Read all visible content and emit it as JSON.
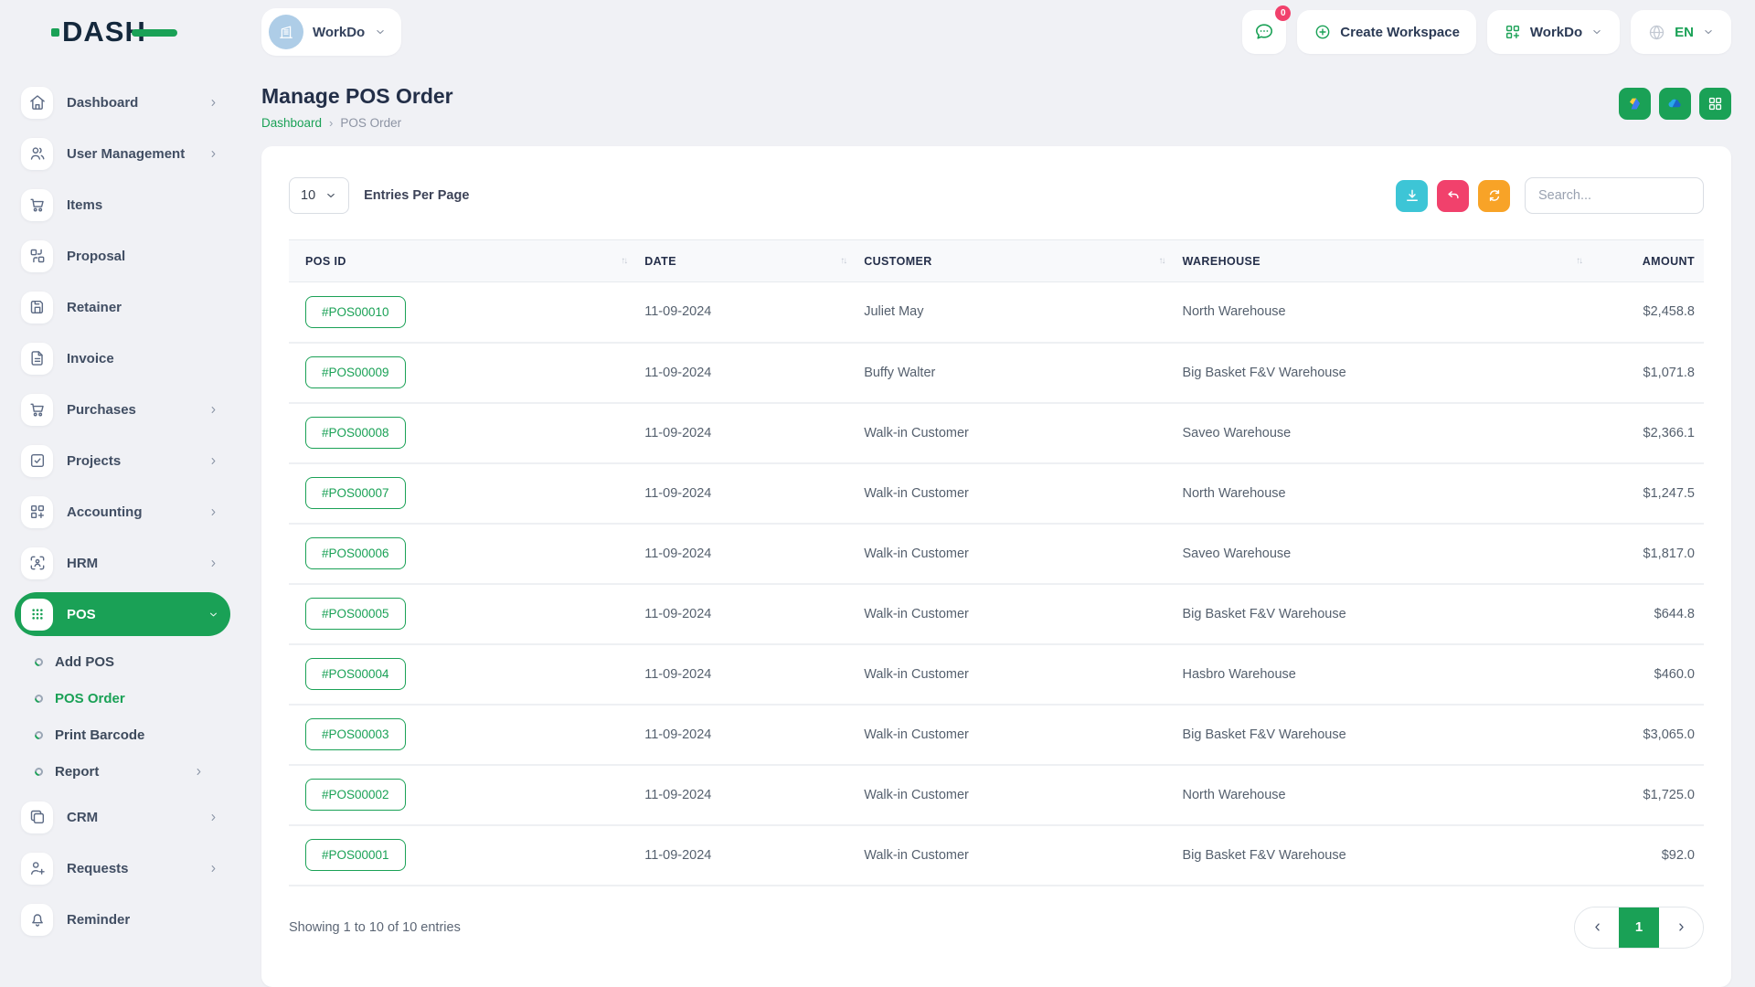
{
  "brand": {
    "logo_text": "DASH"
  },
  "header": {
    "workspace_name": "WorkDo",
    "messages_badge": "0",
    "create_workspace_label": "Create Workspace",
    "app_menu_label": "WorkDo",
    "language": "EN"
  },
  "sidebar": {
    "items": [
      {
        "label": "Dashboard",
        "icon": "home",
        "chevron": "right"
      },
      {
        "label": "User Management",
        "icon": "users",
        "chevron": "right"
      },
      {
        "label": "Items",
        "icon": "cart"
      },
      {
        "label": "Proposal",
        "icon": "swap"
      },
      {
        "label": "Retainer",
        "icon": "save"
      },
      {
        "label": "Invoice",
        "icon": "file"
      },
      {
        "label": "Purchases",
        "icon": "cart",
        "chevron": "right"
      },
      {
        "label": "Projects",
        "icon": "checkbox",
        "chevron": "right"
      },
      {
        "label": "Accounting",
        "icon": "gridplus",
        "chevron": "right"
      },
      {
        "label": "HRM",
        "icon": "scan",
        "chevron": "right"
      },
      {
        "label": "POS",
        "icon": "dotsgrid",
        "chevron": "down",
        "active": true,
        "children": [
          {
            "label": "Add POS"
          },
          {
            "label": "POS Order",
            "active": true
          },
          {
            "label": "Print Barcode"
          },
          {
            "label": "Report",
            "chevron": "right"
          }
        ]
      },
      {
        "label": "CRM",
        "icon": "copy",
        "chevron": "right"
      },
      {
        "label": "Requests",
        "icon": "userplus",
        "chevron": "right"
      },
      {
        "label": "Reminder",
        "icon": "bell"
      }
    ]
  },
  "page": {
    "title": "Manage POS Order",
    "breadcrumb_home": "Dashboard",
    "breadcrumb_current": "POS Order"
  },
  "toolbar": {
    "entries_value": "10",
    "entries_label": "Entries Per Page",
    "search_placeholder": "Search..."
  },
  "table": {
    "columns": [
      {
        "label": "POS ID",
        "sortable": true
      },
      {
        "label": "DATE",
        "sortable": true
      },
      {
        "label": "CUSTOMER",
        "sortable": true
      },
      {
        "label": "WAREHOUSE",
        "sortable": true
      },
      {
        "label": "AMOUNT",
        "sortable": false,
        "align": "right"
      }
    ],
    "rows": [
      {
        "pos_id": "#POS00010",
        "date": "11-09-2024",
        "customer": "Juliet May",
        "warehouse": "North Warehouse",
        "amount": "$2,458.8"
      },
      {
        "pos_id": "#POS00009",
        "date": "11-09-2024",
        "customer": "Buffy Walter",
        "warehouse": "Big Basket F&V Warehouse",
        "amount": "$1,071.8"
      },
      {
        "pos_id": "#POS00008",
        "date": "11-09-2024",
        "customer": "Walk-in Customer",
        "warehouse": "Saveo Warehouse",
        "amount": "$2,366.1"
      },
      {
        "pos_id": "#POS00007",
        "date": "11-09-2024",
        "customer": "Walk-in Customer",
        "warehouse": "North Warehouse",
        "amount": "$1,247.5"
      },
      {
        "pos_id": "#POS00006",
        "date": "11-09-2024",
        "customer": "Walk-in Customer",
        "warehouse": "Saveo Warehouse",
        "amount": "$1,817.0"
      },
      {
        "pos_id": "#POS00005",
        "date": "11-09-2024",
        "customer": "Walk-in Customer",
        "warehouse": "Big Basket F&V Warehouse",
        "amount": "$644.8"
      },
      {
        "pos_id": "#POS00004",
        "date": "11-09-2024",
        "customer": "Walk-in Customer",
        "warehouse": "Hasbro Warehouse",
        "amount": "$460.0"
      },
      {
        "pos_id": "#POS00003",
        "date": "11-09-2024",
        "customer": "Walk-in Customer",
        "warehouse": "Big Basket F&V Warehouse",
        "amount": "$3,065.0"
      },
      {
        "pos_id": "#POS00002",
        "date": "11-09-2024",
        "customer": "Walk-in Customer",
        "warehouse": "North Warehouse",
        "amount": "$1,725.0"
      },
      {
        "pos_id": "#POS00001",
        "date": "11-09-2024",
        "customer": "Walk-in Customer",
        "warehouse": "Big Basket F&V Warehouse",
        "amount": "$92.0"
      }
    ]
  },
  "footer": {
    "showing_text": "Showing 1 to 10 of 10 entries",
    "page": "1"
  },
  "colors": {
    "primary_green": "#1aa156",
    "cyan": "#3dc5d6",
    "pink": "#f1416c",
    "orange": "#f8a327",
    "dark_navy": "#14283c"
  }
}
